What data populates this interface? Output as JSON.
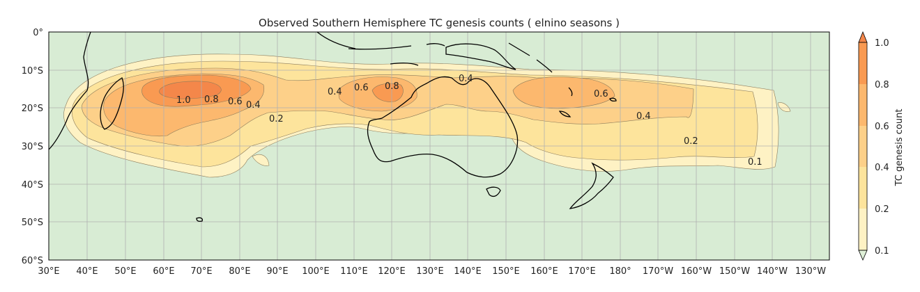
{
  "title": "Observed Southern Hemisphere TC genesis counts ( elnino seasons )",
  "map": {
    "lon_labels": [
      "30°E",
      "40°E",
      "50°E",
      "60°E",
      "70°E",
      "80°E",
      "90°E",
      "100°E",
      "110°E",
      "120°E",
      "130°E",
      "140°E",
      "150°E",
      "160°E",
      "170°E",
      "180°",
      "170°W",
      "160°W",
      "150°W",
      "140°W",
      "130°W"
    ],
    "lat_labels": [
      "0°",
      "10°S",
      "20°S",
      "30°S",
      "40°S",
      "50°S",
      "60°S"
    ],
    "lon_range": [
      30,
      235
    ],
    "lat_range": [
      0,
      -60
    ],
    "ocean_color": "#d8ecd4",
    "gridlines": true
  },
  "colorbar": {
    "label": "TC genesis count",
    "levels": [
      "0.1",
      "0.2",
      "0.4",
      "0.6",
      "0.8",
      "1.0"
    ],
    "colors": [
      "#fef2c4",
      "#fde49c",
      "#fdd089",
      "#fcb86e",
      "#f99a52"
    ],
    "extend": "both"
  },
  "contour_labels": [
    "1.0",
    "0.8",
    "0.6",
    "0.4",
    "0.2",
    "0.4",
    "0.6",
    "0.8",
    "0.4",
    "0.6",
    "0.4",
    "0.2",
    "0.1"
  ]
}
